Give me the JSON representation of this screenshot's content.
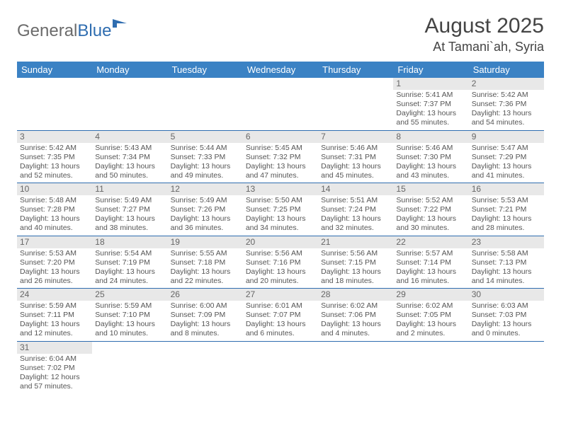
{
  "logo": {
    "text1": "General",
    "text2": "Blue"
  },
  "title": {
    "month": "August 2025",
    "location": "At Tamani`ah, Syria"
  },
  "colors": {
    "header_bg": "#3b82c4",
    "header_text": "#ffffff",
    "cell_divider": "#2f6db0",
    "daynum_bg": "#e8e8e8",
    "body_text": "#555555",
    "logo_grey": "#6b6b6b",
    "logo_blue": "#2f6db0"
  },
  "daysOfWeek": [
    "Sunday",
    "Monday",
    "Tuesday",
    "Wednesday",
    "Thursday",
    "Friday",
    "Saturday"
  ],
  "weeks": [
    [
      null,
      null,
      null,
      null,
      null,
      {
        "n": "1",
        "sunrise": "5:41 AM",
        "sunset": "7:37 PM",
        "dh": "13",
        "dm": "55"
      },
      {
        "n": "2",
        "sunrise": "5:42 AM",
        "sunset": "7:36 PM",
        "dh": "13",
        "dm": "54"
      }
    ],
    [
      {
        "n": "3",
        "sunrise": "5:42 AM",
        "sunset": "7:35 PM",
        "dh": "13",
        "dm": "52"
      },
      {
        "n": "4",
        "sunrise": "5:43 AM",
        "sunset": "7:34 PM",
        "dh": "13",
        "dm": "50"
      },
      {
        "n": "5",
        "sunrise": "5:44 AM",
        "sunset": "7:33 PM",
        "dh": "13",
        "dm": "49"
      },
      {
        "n": "6",
        "sunrise": "5:45 AM",
        "sunset": "7:32 PM",
        "dh": "13",
        "dm": "47"
      },
      {
        "n": "7",
        "sunrise": "5:46 AM",
        "sunset": "7:31 PM",
        "dh": "13",
        "dm": "45"
      },
      {
        "n": "8",
        "sunrise": "5:46 AM",
        "sunset": "7:30 PM",
        "dh": "13",
        "dm": "43"
      },
      {
        "n": "9",
        "sunrise": "5:47 AM",
        "sunset": "7:29 PM",
        "dh": "13",
        "dm": "41"
      }
    ],
    [
      {
        "n": "10",
        "sunrise": "5:48 AM",
        "sunset": "7:28 PM",
        "dh": "13",
        "dm": "40"
      },
      {
        "n": "11",
        "sunrise": "5:49 AM",
        "sunset": "7:27 PM",
        "dh": "13",
        "dm": "38"
      },
      {
        "n": "12",
        "sunrise": "5:49 AM",
        "sunset": "7:26 PM",
        "dh": "13",
        "dm": "36"
      },
      {
        "n": "13",
        "sunrise": "5:50 AM",
        "sunset": "7:25 PM",
        "dh": "13",
        "dm": "34"
      },
      {
        "n": "14",
        "sunrise": "5:51 AM",
        "sunset": "7:24 PM",
        "dh": "13",
        "dm": "32"
      },
      {
        "n": "15",
        "sunrise": "5:52 AM",
        "sunset": "7:22 PM",
        "dh": "13",
        "dm": "30"
      },
      {
        "n": "16",
        "sunrise": "5:53 AM",
        "sunset": "7:21 PM",
        "dh": "13",
        "dm": "28"
      }
    ],
    [
      {
        "n": "17",
        "sunrise": "5:53 AM",
        "sunset": "7:20 PM",
        "dh": "13",
        "dm": "26"
      },
      {
        "n": "18",
        "sunrise": "5:54 AM",
        "sunset": "7:19 PM",
        "dh": "13",
        "dm": "24"
      },
      {
        "n": "19",
        "sunrise": "5:55 AM",
        "sunset": "7:18 PM",
        "dh": "13",
        "dm": "22"
      },
      {
        "n": "20",
        "sunrise": "5:56 AM",
        "sunset": "7:16 PM",
        "dh": "13",
        "dm": "20"
      },
      {
        "n": "21",
        "sunrise": "5:56 AM",
        "sunset": "7:15 PM",
        "dh": "13",
        "dm": "18"
      },
      {
        "n": "22",
        "sunrise": "5:57 AM",
        "sunset": "7:14 PM",
        "dh": "13",
        "dm": "16"
      },
      {
        "n": "23",
        "sunrise": "5:58 AM",
        "sunset": "7:13 PM",
        "dh": "13",
        "dm": "14"
      }
    ],
    [
      {
        "n": "24",
        "sunrise": "5:59 AM",
        "sunset": "7:11 PM",
        "dh": "13",
        "dm": "12"
      },
      {
        "n": "25",
        "sunrise": "5:59 AM",
        "sunset": "7:10 PM",
        "dh": "13",
        "dm": "10"
      },
      {
        "n": "26",
        "sunrise": "6:00 AM",
        "sunset": "7:09 PM",
        "dh": "13",
        "dm": "8"
      },
      {
        "n": "27",
        "sunrise": "6:01 AM",
        "sunset": "7:07 PM",
        "dh": "13",
        "dm": "6"
      },
      {
        "n": "28",
        "sunrise": "6:02 AM",
        "sunset": "7:06 PM",
        "dh": "13",
        "dm": "4"
      },
      {
        "n": "29",
        "sunrise": "6:02 AM",
        "sunset": "7:05 PM",
        "dh": "13",
        "dm": "2"
      },
      {
        "n": "30",
        "sunrise": "6:03 AM",
        "sunset": "7:03 PM",
        "dh": "13",
        "dm": "0"
      }
    ],
    [
      {
        "n": "31",
        "sunrise": "6:04 AM",
        "sunset": "7:02 PM",
        "dh": "12",
        "dm": "57"
      },
      null,
      null,
      null,
      null,
      null,
      null
    ]
  ]
}
